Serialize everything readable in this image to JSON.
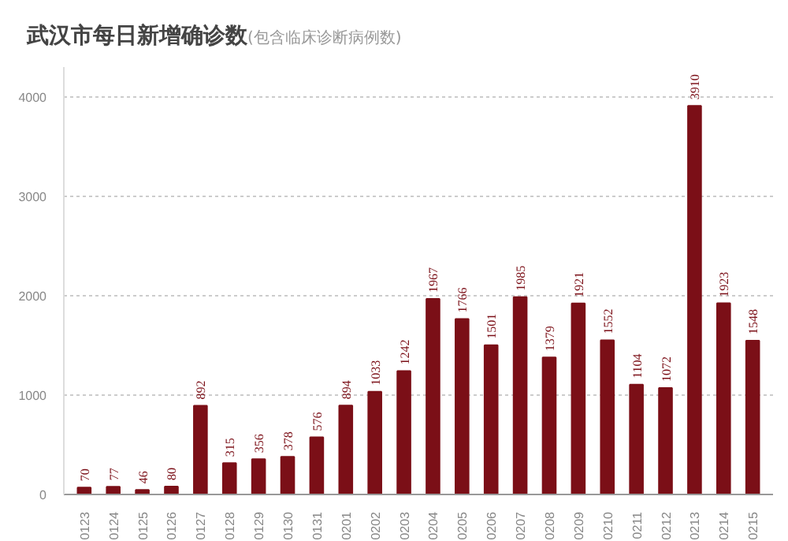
{
  "chart_data": {
    "type": "bar",
    "title": "武汉市每日新增确诊数",
    "subtitle": "(包含临床诊断病例数)",
    "categories": [
      "0123",
      "0124",
      "0125",
      "0126",
      "0127",
      "0128",
      "0129",
      "0130",
      "0131",
      "0201",
      "0202",
      "0203",
      "0204",
      "0205",
      "0206",
      "0207",
      "0208",
      "0209",
      "0210",
      "0211",
      "0212",
      "0213",
      "0214",
      "0215"
    ],
    "values": [
      70,
      77,
      46,
      80,
      892,
      315,
      356,
      378,
      576,
      894,
      1033,
      1242,
      1967,
      1766,
      1501,
      1985,
      1379,
      1921,
      1552,
      1104,
      1072,
      3910,
      1923,
      1548
    ],
    "color": "#7b0f17",
    "ylim": [
      0,
      4300
    ],
    "yticks": [
      0,
      1000,
      2000,
      3000,
      4000
    ],
    "grid": "y",
    "data_labels": true
  }
}
